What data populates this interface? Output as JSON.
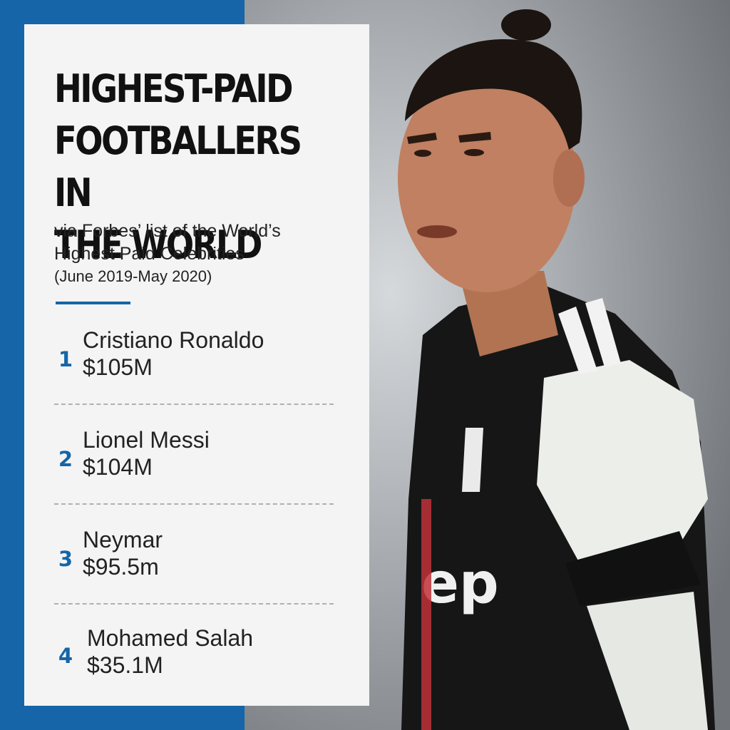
{
  "title_lines": [
    "HIGHEST-PAID",
    "FOOTBALLERS IN",
    "THE WORLD"
  ],
  "subtitle_lines": [
    "via Forbes’ list of the World’s",
    "Highest Paid Celebrities"
  ],
  "period": "(June 2019-May 2020)",
  "ranking": [
    {
      "rank": "1",
      "name": "Cristiano Ronaldo",
      "earnings": "$105M"
    },
    {
      "rank": "2",
      "name": "Lionel Messi",
      "earnings": "$104M"
    },
    {
      "rank": "3",
      "name": "Neymar",
      "earnings": "$95.5m"
    },
    {
      "rank": "4",
      "name": "Mohamed Salah",
      "earnings": "$35.1M"
    }
  ],
  "colors": {
    "accent": "#1565a8",
    "card": "#f4f4f4",
    "text": "#222222"
  }
}
